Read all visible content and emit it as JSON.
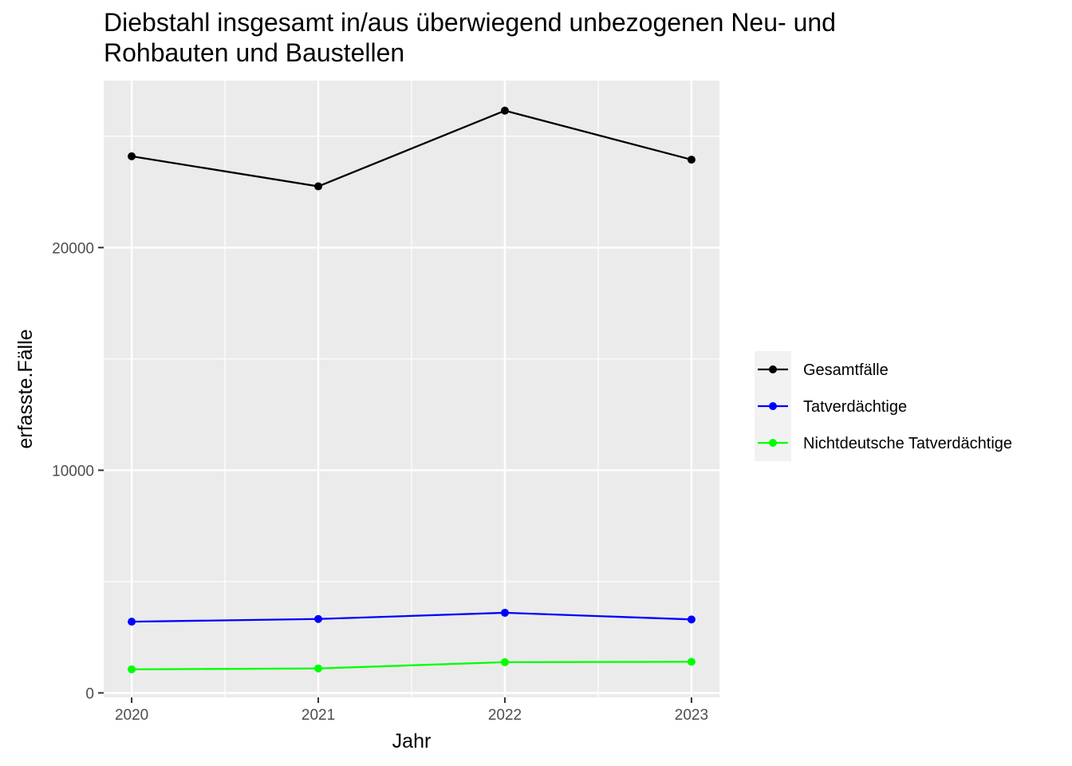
{
  "chart_data": {
    "type": "line",
    "title_lines": [
      "Diebstahl insgesamt in/aus überwiegend unbezogenen Neu- und",
      "Rohbauten und Baustellen"
    ],
    "xlabel": "Jahr",
    "ylabel": "erfasste.Fälle",
    "x": [
      2020,
      2021,
      2022,
      2023
    ],
    "x_tick_labels": [
      "2020",
      "2021",
      "2022",
      "2023"
    ],
    "y_tick_values": [
      0,
      10000,
      20000
    ],
    "y_tick_labels": [
      "0",
      "10000",
      "20000"
    ],
    "ylim": [
      -200,
      27500
    ],
    "grid": true,
    "legend_position": "right",
    "series": [
      {
        "name": "Gesamtfälle",
        "color": "#000000",
        "values": [
          24100,
          22750,
          26150,
          23950
        ]
      },
      {
        "name": "Tatverdächtige",
        "color": "#0000ff",
        "values": [
          3200,
          3320,
          3600,
          3300
        ]
      },
      {
        "name": "Nichtdeutsche Tatverdächtige",
        "color": "#00ff00",
        "values": [
          1060,
          1100,
          1380,
          1400
        ]
      }
    ]
  }
}
